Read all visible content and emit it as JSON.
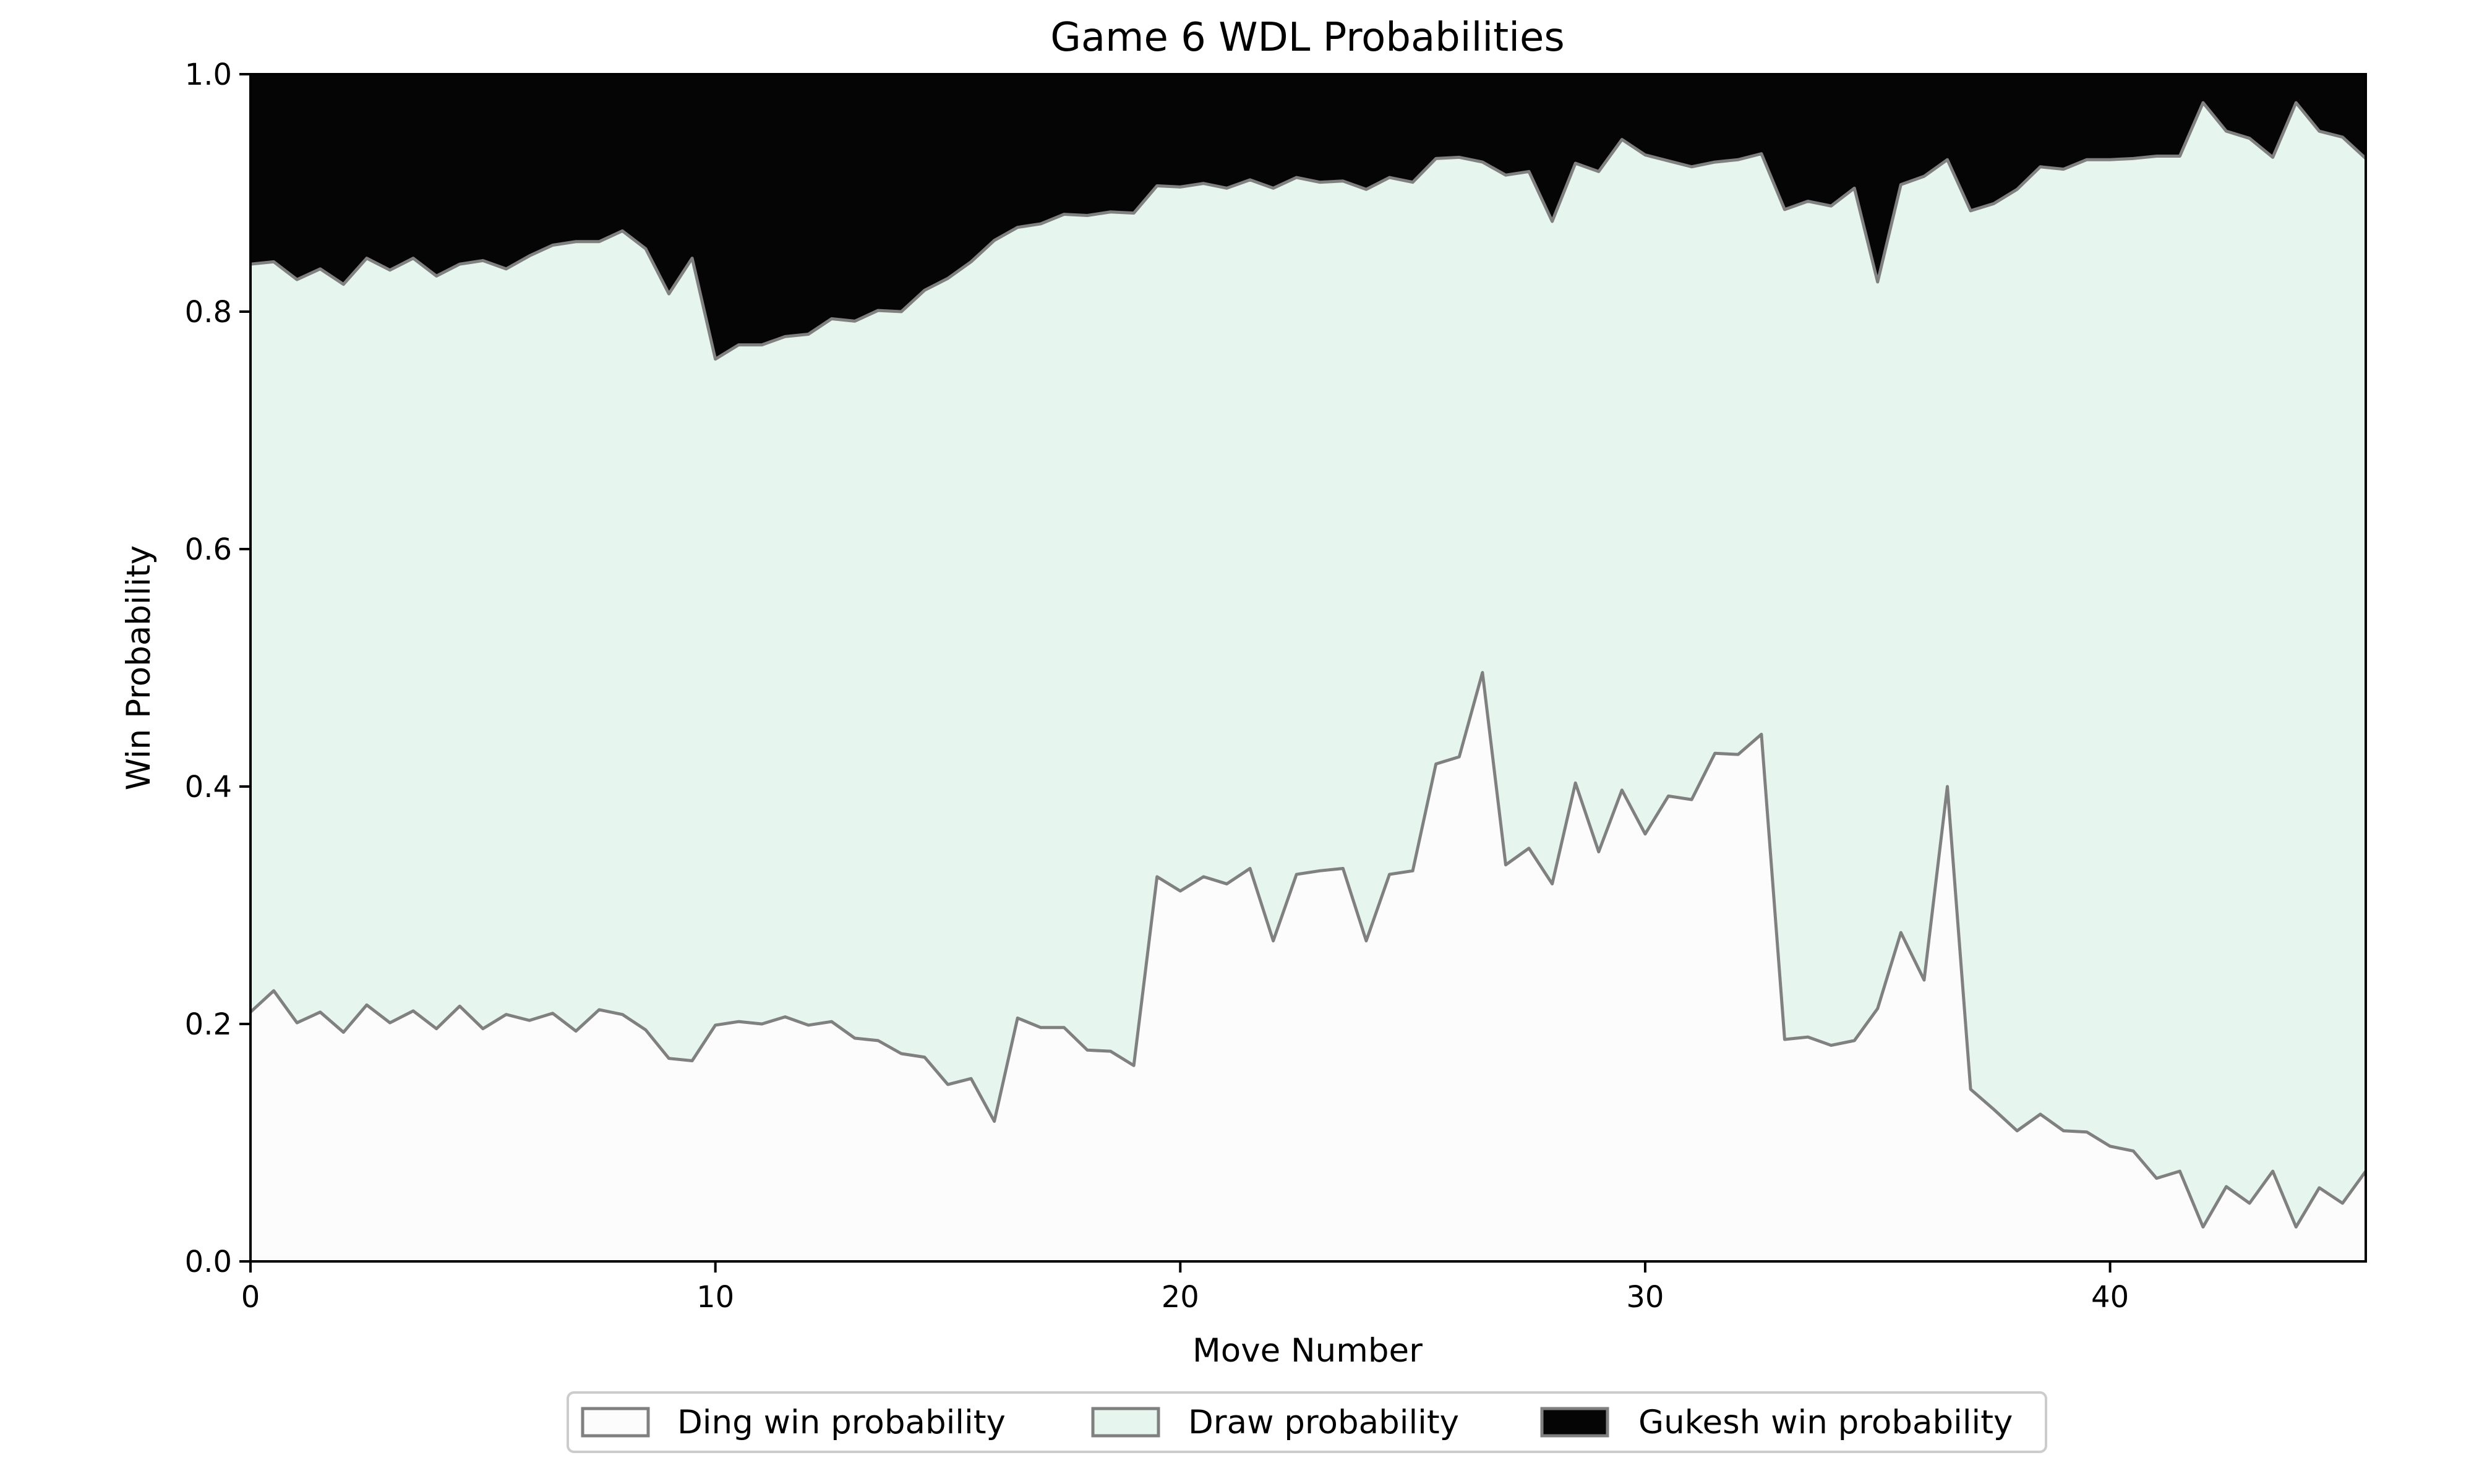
{
  "chart_data": {
    "type": "area",
    "stacked": true,
    "title": "Game 6 WDL Probabilities",
    "xlabel": "Move Number",
    "ylabel": "Win Probability",
    "xlim": [
      0,
      45.5
    ],
    "ylim": [
      0,
      1
    ],
    "xticks": [
      0,
      10,
      20,
      30,
      40
    ],
    "yticks": [
      0.0,
      0.2,
      0.4,
      0.6,
      0.8,
      1.0
    ],
    "xtick_labels": [
      "0",
      "10",
      "20",
      "30",
      "40"
    ],
    "ytick_labels": [
      "0.0",
      "0.2",
      "0.4",
      "0.6",
      "0.8",
      "1.0"
    ],
    "grid": false,
    "legend_position": "bottom-center",
    "x": [
      0,
      0.5,
      1,
      1.5,
      2,
      2.5,
      3,
      3.5,
      4,
      4.5,
      5,
      5.5,
      6,
      6.5,
      7,
      7.5,
      8,
      8.5,
      9,
      9.5,
      10,
      10.5,
      11,
      11.5,
      12,
      12.5,
      13,
      13.5,
      14,
      14.5,
      15,
      15.5,
      16,
      16.5,
      17,
      17.5,
      18,
      18.5,
      19,
      19.5,
      20,
      20.5,
      21,
      21.5,
      22,
      22.5,
      23,
      23.5,
      24,
      24.5,
      25,
      25.5,
      26,
      26.5,
      27,
      27.5,
      28,
      28.5,
      29,
      29.5,
      30,
      30.5,
      31,
      31.5,
      32,
      32.5,
      33,
      33.5,
      34,
      34.5,
      35,
      35.5,
      36,
      36.5,
      37,
      37.5,
      38,
      38.5,
      39,
      39.5,
      40,
      40.5,
      41,
      41.5,
      42,
      42.5,
      43,
      43.5,
      44,
      44.5,
      45,
      45.5
    ],
    "series": [
      {
        "name": "Ding win probability",
        "color": "#fcfcfc",
        "values": [
          0.21,
          0.228,
          0.201,
          0.21,
          0.193,
          0.216,
          0.201,
          0.211,
          0.196,
          0.215,
          0.196,
          0.208,
          0.203,
          0.209,
          0.194,
          0.212,
          0.208,
          0.195,
          0.171,
          0.169,
          0.199,
          0.202,
          0.2,
          0.206,
          0.199,
          0.202,
          0.188,
          0.186,
          0.175,
          0.172,
          0.149,
          0.154,
          0.118,
          0.205,
          0.197,
          0.197,
          0.178,
          0.177,
          0.165,
          0.324,
          0.312,
          0.324,
          0.318,
          0.331,
          0.27,
          0.326,
          0.329,
          0.331,
          0.27,
          0.326,
          0.329,
          0.419,
          0.425,
          0.496,
          0.334,
          0.348,
          0.318,
          0.403,
          0.345,
          0.397,
          0.36,
          0.392,
          0.389,
          0.428,
          0.427,
          0.444,
          0.187,
          0.189,
          0.182,
          0.186,
          0.213,
          0.277,
          0.237,
          0.4,
          0.145,
          0.128,
          0.11,
          0.124,
          0.11,
          0.109,
          0.097,
          0.093,
          0.07,
          0.076,
          0.029,
          0.063,
          0.049,
          0.076,
          0.029,
          0.062,
          0.049,
          0.076
        ]
      },
      {
        "name": "Draw probability",
        "color": "#e6f6ef",
        "values": [
          0.63,
          0.614,
          0.626,
          0.626,
          0.63,
          0.629,
          0.634,
          0.634,
          0.634,
          0.625,
          0.647,
          0.628,
          0.644,
          0.647,
          0.665,
          0.647,
          0.66,
          0.658,
          0.644,
          0.676,
          0.561,
          0.57,
          0.572,
          0.573,
          0.582,
          0.592,
          0.604,
          0.615,
          0.625,
          0.646,
          0.679,
          0.688,
          0.742,
          0.666,
          0.677,
          0.685,
          0.703,
          0.707,
          0.718,
          0.582,
          0.593,
          0.584,
          0.586,
          0.58,
          0.634,
          0.587,
          0.58,
          0.579,
          0.633,
          0.587,
          0.58,
          0.51,
          0.505,
          0.43,
          0.581,
          0.57,
          0.558,
          0.522,
          0.573,
          0.548,
          0.572,
          0.535,
          0.533,
          0.498,
          0.501,
          0.489,
          0.699,
          0.704,
          0.707,
          0.718,
          0.612,
          0.63,
          0.677,
          0.528,
          0.74,
          0.763,
          0.793,
          0.798,
          0.81,
          0.819,
          0.831,
          0.836,
          0.861,
          0.855,
          0.947,
          0.889,
          0.897,
          0.854,
          0.947,
          0.89,
          0.898,
          0.853
        ]
      },
      {
        "name": "Gukesh win probability",
        "color": "#050505",
        "values": [
          0.16,
          0.158,
          0.173,
          0.164,
          0.177,
          0.155,
          0.165,
          0.155,
          0.17,
          0.16,
          0.157,
          0.164,
          0.153,
          0.144,
          0.141,
          0.141,
          0.132,
          0.147,
          0.185,
          0.155,
          0.24,
          0.228,
          0.228,
          0.221,
          0.219,
          0.206,
          0.208,
          0.199,
          0.2,
          0.182,
          0.172,
          0.158,
          0.14,
          0.129,
          0.126,
          0.118,
          0.119,
          0.116,
          0.117,
          0.094,
          0.095,
          0.092,
          0.096,
          0.089,
          0.096,
          0.087,
          0.091,
          0.09,
          0.097,
          0.087,
          0.091,
          0.071,
          0.07,
          0.074,
          0.085,
          0.082,
          0.124,
          0.075,
          0.082,
          0.055,
          0.068,
          0.073,
          0.078,
          0.074,
          0.072,
          0.067,
          0.114,
          0.107,
          0.111,
          0.096,
          0.175,
          0.093,
          0.086,
          0.072,
          0.115,
          0.109,
          0.097,
          0.078,
          0.08,
          0.072,
          0.072,
          0.071,
          0.069,
          0.069,
          0.024,
          0.048,
          0.054,
          0.07,
          0.024,
          0.048,
          0.053,
          0.071
        ]
      }
    ]
  }
}
